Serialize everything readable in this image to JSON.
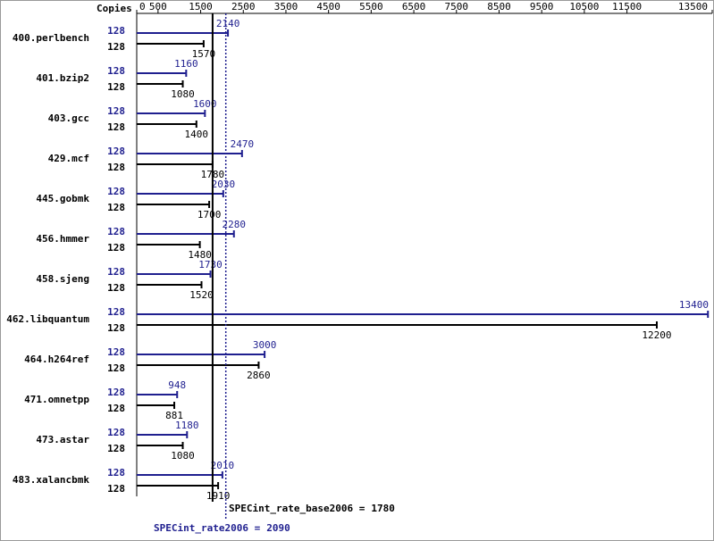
{
  "chart_data": {
    "type": "bar",
    "orientation": "horizontal",
    "copies_header": "Copies",
    "categories": [
      "400.perlbench",
      "401.bzip2",
      "403.gcc",
      "429.mcf",
      "445.gobmk",
      "456.hmmer",
      "458.sjeng",
      "462.libquantum",
      "464.h264ref",
      "471.omnetpp",
      "473.astar",
      "483.xalancbmk"
    ],
    "series": [
      {
        "color": "#1f1f8f",
        "copies": [
          128,
          128,
          128,
          128,
          128,
          128,
          128,
          128,
          128,
          128,
          128,
          128
        ],
        "values": [
          2140,
          1160,
          1600,
          2470,
          2030,
          2280,
          1730,
          13400,
          3000,
          948,
          1180,
          2010
        ]
      },
      {
        "color": "#000000",
        "copies": [
          128,
          128,
          128,
          128,
          128,
          128,
          128,
          128,
          128,
          128,
          128,
          128
        ],
        "values": [
          1570,
          1080,
          1400,
          1780,
          1700,
          1480,
          1520,
          12200,
          2860,
          881,
          1080,
          1910
        ]
      }
    ],
    "xlim": [
      0,
      13500
    ],
    "xticks": [
      0,
      500,
      1500,
      2500,
      3500,
      4500,
      5500,
      6500,
      7500,
      8500,
      9500,
      10500,
      11500,
      13500
    ],
    "reference_lines": [
      {
        "label": "SPECint_rate_base2006 =",
        "value": 1780,
        "color": "#000000",
        "dash": false
      },
      {
        "label": "SPECint_rate2006 =",
        "value": 2090,
        "color": "#1f1f8f",
        "dash": true
      }
    ]
  }
}
